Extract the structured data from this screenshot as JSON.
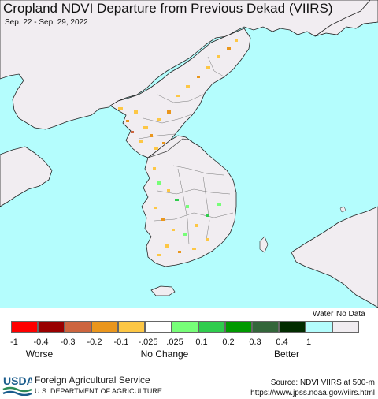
{
  "header": {
    "title": "Cropland NDVI Departure from Previous Dekad (VIIRS)",
    "date_range": "Sep. 22 - Sep. 29, 2022"
  },
  "map": {
    "colors": {
      "water": "#b4fdfd",
      "land": "#f1edf1",
      "border": "#666666",
      "coast": "#222222"
    }
  },
  "legend": {
    "water_label": "Water",
    "nodata_label": "No Data",
    "classes": [
      {
        "color": "#fe0000"
      },
      {
        "color": "#990000"
      },
      {
        "color": "#cd653f"
      },
      {
        "color": "#ea961d"
      },
      {
        "color": "#fdc745"
      },
      {
        "color": "#ffffff"
      },
      {
        "color": "#77fe78"
      },
      {
        "color": "#2fcc4d"
      },
      {
        "color": "#009900"
      },
      {
        "color": "#33663a"
      },
      {
        "color": "#022c00"
      },
      {
        "color": "#b4fdfd"
      },
      {
        "color": "#f1edf1"
      }
    ],
    "ticks": [
      "-1",
      "-0.4",
      "-0.3",
      "-0.2",
      "-0.1",
      "-.025",
      ".025",
      "0.1",
      "0.2",
      "0.3",
      "0.4",
      "1"
    ],
    "categories": {
      "worse": "Worse",
      "no_change": "No Change",
      "better": "Better"
    }
  },
  "footer": {
    "logo_text": "USDA",
    "agency": "Foreign Agricultural Service",
    "department": "U.S. DEPARTMENT OF AGRICULTURE",
    "source": "Source: NDVI VIIRS at 500-m",
    "url": "https://www.jpss.noaa.gov/viirs.html"
  }
}
